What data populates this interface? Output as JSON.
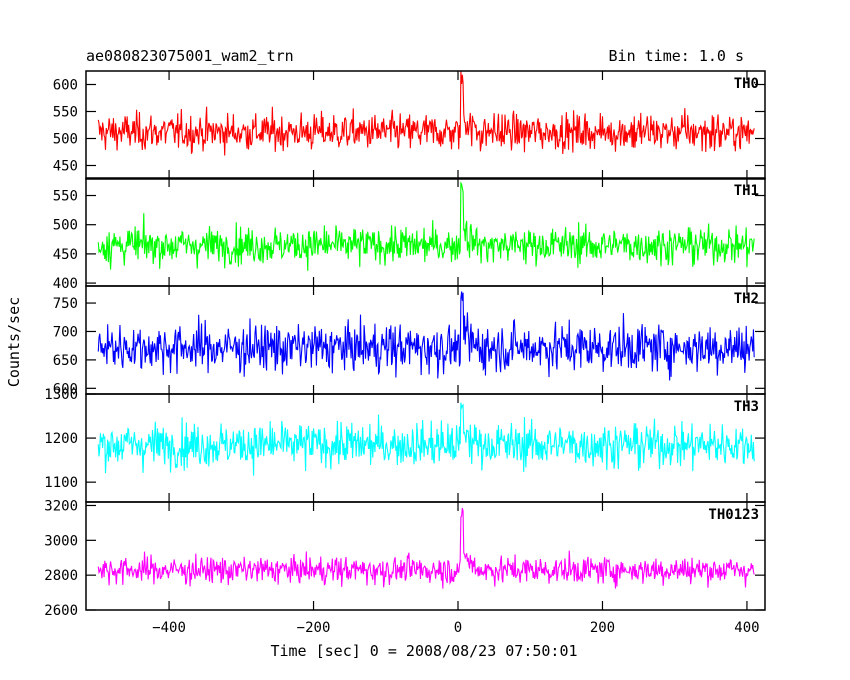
{
  "header": {
    "title": "ae080823075001_wam2_trn",
    "bin_time": "Bin time: 1.0 s"
  },
  "axes": {
    "ylabel": "Counts/sec",
    "xlabel": "Time [sec] 0 = 2008/08/23 07:50:01"
  },
  "chart_data": {
    "type": "line",
    "x_range": [
      -515,
      425
    ],
    "x_ticks": [
      -400,
      -200,
      0,
      200,
      400
    ],
    "x_tick_labels": [
      "−400",
      "−200",
      "0",
      "200",
      "400"
    ],
    "x_data": {
      "start": -498,
      "end": 410,
      "step": 1
    },
    "burst_time": 5,
    "panels": [
      {
        "name": "TH0",
        "color": "#ff0000",
        "ylim": [
          425,
          625
        ],
        "yticks": [
          450,
          500,
          550,
          600
        ],
        "mean": 512,
        "noise": 24,
        "burst_peak": 625
      },
      {
        "name": "TH1",
        "color": "#00ff00",
        "ylim": [
          395,
          580
        ],
        "yticks": [
          400,
          450,
          500,
          550
        ],
        "mean": 465,
        "noise": 22,
        "burst_peak": 578
      },
      {
        "name": "TH2",
        "color": "#0000ff",
        "ylim": [
          590,
          780
        ],
        "yticks": [
          600,
          650,
          700,
          750
        ],
        "mean": 672,
        "noise": 30,
        "burst_peak": 778
      },
      {
        "name": "TH3",
        "color": "#00ffff",
        "ylim": [
          1055,
          1300
        ],
        "yticks": [
          1100,
          1200,
          1300
        ],
        "mean": 1185,
        "noise": 35,
        "burst_peak": 1295
      },
      {
        "name": "TH0123",
        "color": "#ff00ff",
        "ylim": [
          2600,
          3220
        ],
        "yticks": [
          2600,
          2800,
          3000,
          3200
        ],
        "mean": 2830,
        "noise": 55,
        "burst_peak": 3210
      }
    ]
  }
}
